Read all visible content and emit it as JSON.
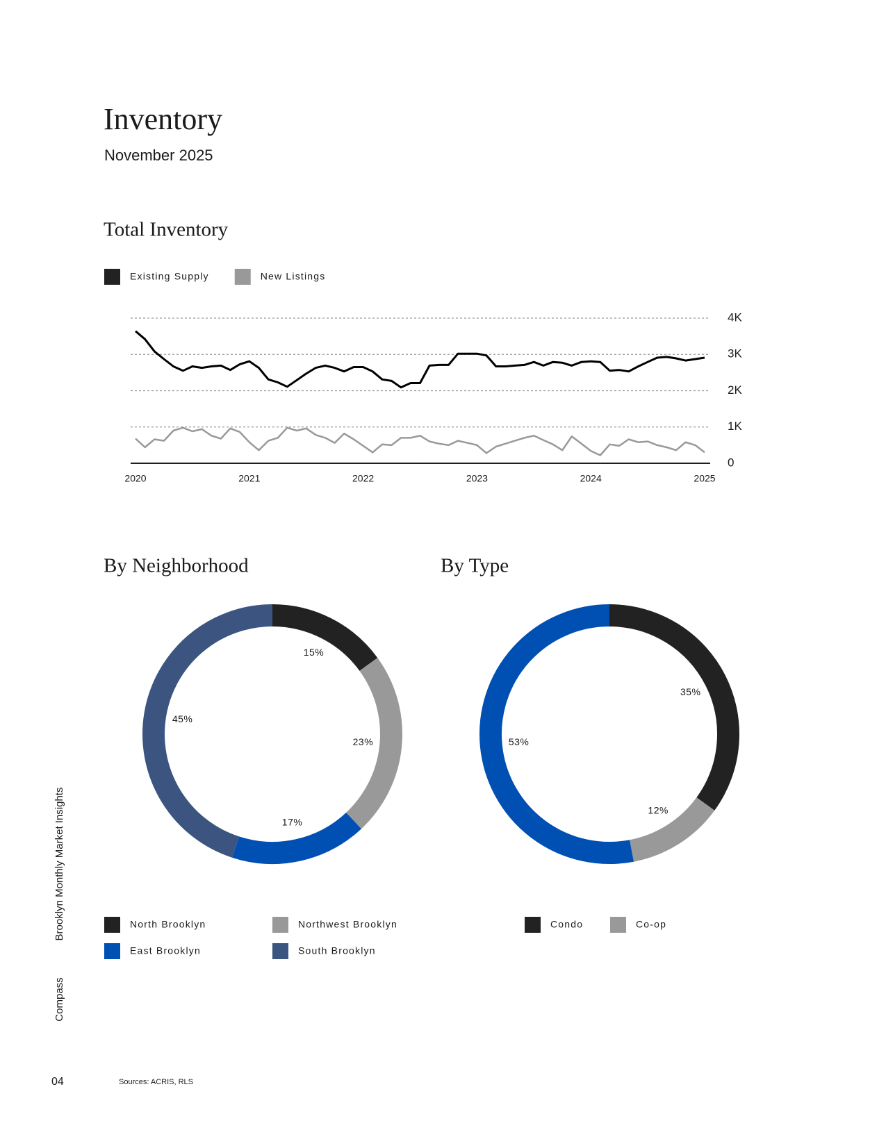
{
  "header": {
    "title": "Inventory",
    "subtitle": "November 2025"
  },
  "sidebar": {
    "report": "Brooklyn Monthly Market Insights",
    "brand": "Compass"
  },
  "footer": {
    "page": "04",
    "sources": "Sources: ACRIS, RLS"
  },
  "chart_data": [
    {
      "type": "line",
      "title": "Total Inventory",
      "x": [
        2020,
        2020.083,
        2020.167,
        2020.25,
        2020.333,
        2020.417,
        2020.5,
        2020.583,
        2020.667,
        2020.75,
        2020.833,
        2020.917,
        2021,
        2021.083,
        2021.167,
        2021.25,
        2021.333,
        2021.417,
        2021.5,
        2021.583,
        2021.667,
        2021.75,
        2021.833,
        2021.917,
        2022,
        2022.083,
        2022.167,
        2022.25,
        2022.333,
        2022.417,
        2022.5,
        2022.583,
        2022.667,
        2022.75,
        2022.833,
        2022.917,
        2023,
        2023.083,
        2023.167,
        2023.25,
        2023.333,
        2023.417,
        2023.5,
        2023.583,
        2023.667,
        2023.75,
        2023.833,
        2023.917,
        2024,
        2024.083,
        2024.167,
        2024.25,
        2024.333,
        2024.417,
        2024.5,
        2024.583,
        2024.667,
        2024.75,
        2024.833,
        2024.917,
        2025
      ],
      "series": [
        {
          "name": "Existing Supply",
          "color": "#000000",
          "legend_color": "#222222",
          "values": [
            3640,
            3420,
            3080,
            2870,
            2670,
            2550,
            2670,
            2630,
            2670,
            2690,
            2570,
            2730,
            2810,
            2630,
            2310,
            2230,
            2110,
            2290,
            2470,
            2630,
            2690,
            2630,
            2530,
            2650,
            2650,
            2530,
            2310,
            2270,
            2090,
            2210,
            2210,
            2690,
            2710,
            2710,
            3020,
            3020,
            3020,
            2970,
            2670,
            2670,
            2690,
            2710,
            2790,
            2690,
            2790,
            2770,
            2690,
            2790,
            2810,
            2790,
            2550,
            2570,
            2530,
            2670,
            2790,
            2910,
            2930,
            2890,
            2830,
            2870,
            2910
          ]
        },
        {
          "name": "New Listings",
          "color": "#999999",
          "legend_color": "#999999",
          "values": [
            680,
            440,
            660,
            620,
            900,
            980,
            880,
            940,
            760,
            680,
            960,
            860,
            580,
            360,
            620,
            700,
            980,
            900,
            960,
            780,
            700,
            560,
            820,
            660,
            480,
            300,
            520,
            500,
            700,
            700,
            760,
            600,
            540,
            500,
            620,
            560,
            500,
            280,
            460,
            540,
            620,
            700,
            760,
            640,
            520,
            360,
            740,
            540,
            340,
            220,
            520,
            480,
            660,
            580,
            600,
            500,
            440,
            360,
            580,
            500,
            300
          ]
        }
      ],
      "xlim": [
        2020,
        2025
      ],
      "xticks": [
        2020,
        2021,
        2022,
        2023,
        2024,
        2025
      ],
      "ylim": [
        0,
        4000
      ],
      "yticks": [
        0,
        {
          "value": 1000,
          "label": "1K"
        },
        {
          "value": 2000,
          "label": "2K"
        },
        {
          "value": 3000,
          "label": "3K"
        },
        {
          "value": 4000,
          "label": "4K"
        }
      ],
      "grid": true
    },
    {
      "type": "donut",
      "title": "By Neighborhood",
      "categories": [
        "North Brooklyn",
        "Northwest Brooklyn",
        "East Brooklyn",
        "South Brooklyn"
      ],
      "values": [
        15,
        23,
        17,
        45
      ],
      "value_labels": [
        "15%",
        "23%",
        "17%",
        "45%"
      ],
      "colors": [
        "#222222",
        "#999999",
        "#0050b4",
        "#3b5580"
      ]
    },
    {
      "type": "donut",
      "title": "By Type",
      "categories": [
        "Condo",
        "Co-op",
        null
      ],
      "values": [
        35,
        12,
        53
      ],
      "value_labels": [
        "35%",
        "12%",
        "53%"
      ],
      "colors": [
        "#222222",
        "#999999",
        "#0050b4"
      ]
    }
  ]
}
